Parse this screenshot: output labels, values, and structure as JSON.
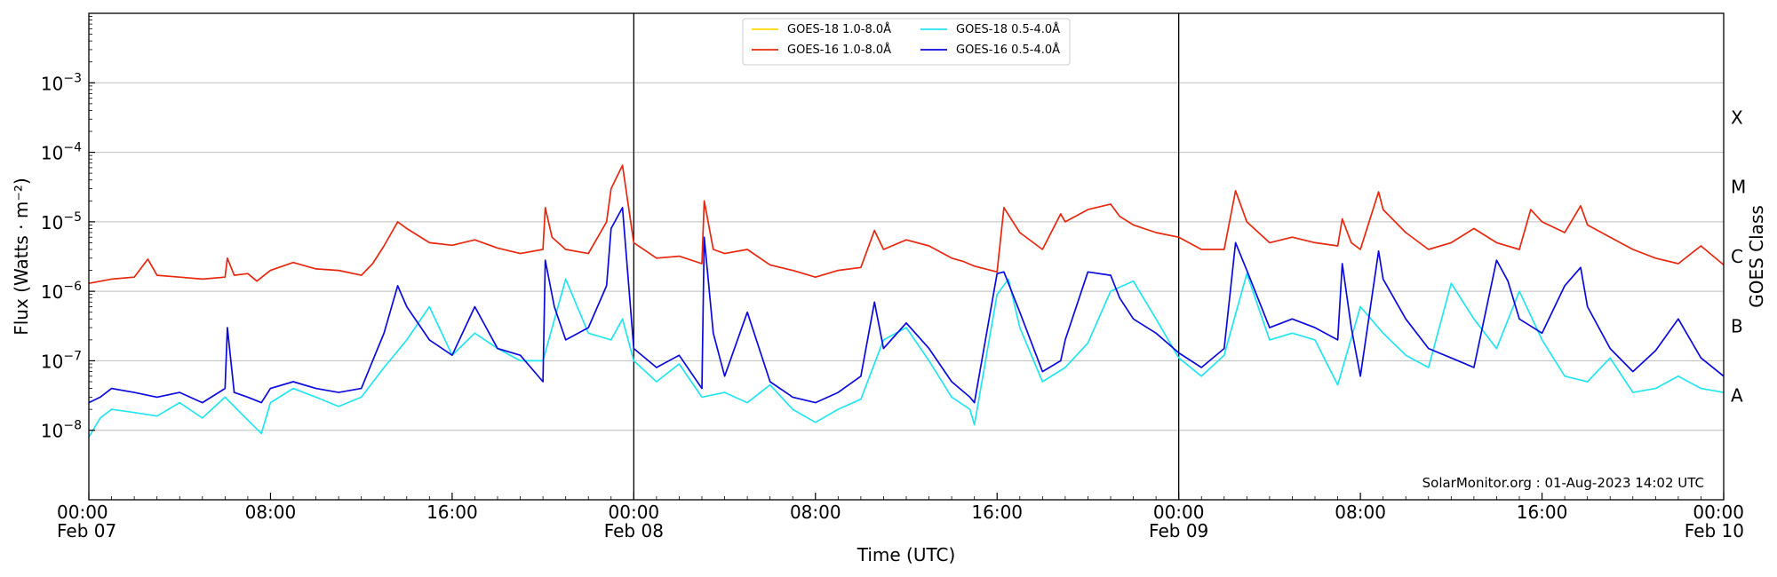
{
  "chart_data": {
    "type": "line",
    "title": "",
    "xlabel": "Time (UTC)",
    "ylabel": "Flux (Watts · m⁻²)",
    "y2label": "GOES Class",
    "yscale": "log",
    "ylim": [
      1e-09,
      0.01
    ],
    "xlim_hours": [
      0,
      72
    ],
    "x_ticks": [
      {
        "hour": 0,
        "time": "00:00",
        "date": "Feb 07"
      },
      {
        "hour": 8,
        "time": "08:00",
        "date": ""
      },
      {
        "hour": 16,
        "time": "16:00",
        "date": ""
      },
      {
        "hour": 24,
        "time": "00:00",
        "date": "Feb 08"
      },
      {
        "hour": 32,
        "time": "08:00",
        "date": ""
      },
      {
        "hour": 40,
        "time": "16:00",
        "date": ""
      },
      {
        "hour": 48,
        "time": "00:00",
        "date": "Feb 09"
      },
      {
        "hour": 56,
        "time": "08:00",
        "date": ""
      },
      {
        "hour": 64,
        "time": "16:00",
        "date": ""
      },
      {
        "hour": 72,
        "time": "00:00",
        "date": "Feb 10"
      }
    ],
    "y_ticks": [
      {
        "value": 1e-08,
        "mantissa": "10",
        "exponent": "−8"
      },
      {
        "value": 1e-07,
        "mantissa": "10",
        "exponent": "−7"
      },
      {
        "value": 1e-06,
        "mantissa": "10",
        "exponent": "−6"
      },
      {
        "value": 1e-05,
        "mantissa": "10",
        "exponent": "−5"
      },
      {
        "value": 0.0001,
        "mantissa": "10",
        "exponent": "−4"
      },
      {
        "value": 0.001,
        "mantissa": "10",
        "exponent": "−3"
      }
    ],
    "goes_classes": [
      {
        "label": "A",
        "value": 3.16e-08
      },
      {
        "label": "B",
        "value": 3.16e-07
      },
      {
        "label": "C",
        "value": 3.16e-06
      },
      {
        "label": "M",
        "value": 3.16e-05
      },
      {
        "label": "X",
        "value": 0.000316
      }
    ],
    "day_boundaries_hours": [
      24,
      48
    ],
    "grid": true,
    "legend_position": "top-center",
    "credit": "SolarMonitor.org : 01-Aug-2023 14:02 UTC",
    "series": [
      {
        "name": "GOES-18 1.0-8.0Å",
        "color": "#FFD700",
        "visible": false,
        "x": [],
        "y": []
      },
      {
        "name": "GOES-16 1.0-8.0Å",
        "color": "#E8270E",
        "x": [
          0,
          1,
          2,
          2.6,
          3,
          4,
          5,
          6,
          6.1,
          6.4,
          7,
          7.4,
          8,
          9,
          10,
          11,
          12,
          12.5,
          13,
          13.6,
          14,
          15,
          16,
          17,
          18,
          19,
          20,
          20.1,
          20.4,
          21,
          22,
          22.8,
          23,
          23.5,
          24,
          25,
          26,
          27,
          27.1,
          27.5,
          28,
          29,
          30,
          31,
          32,
          33,
          34,
          34.6,
          35,
          36,
          37,
          38,
          38.5,
          39,
          40,
          40.3,
          41,
          42,
          42.8,
          43,
          44,
          45,
          45.4,
          46,
          47,
          48,
          49,
          50,
          50.5,
          51,
          52,
          53,
          54,
          55,
          55.2,
          55.6,
          56,
          56.8,
          57,
          58,
          59,
          60,
          61,
          62,
          63,
          63.5,
          64,
          65,
          65.7,
          66,
          67,
          68,
          69,
          70,
          71,
          72
        ],
        "y": [
          1.3e-06,
          1.5e-06,
          1.6e-06,
          2.9e-06,
          1.7e-06,
          1.6e-06,
          1.5e-06,
          1.6e-06,
          3e-06,
          1.7e-06,
          1.8e-06,
          1.4e-06,
          2e-06,
          2.6e-06,
          2.1e-06,
          2e-06,
          1.7e-06,
          2.5e-06,
          4.5e-06,
          1e-05,
          8e-06,
          5e-06,
          4.6e-06,
          5.5e-06,
          4.2e-06,
          3.5e-06,
          4e-06,
          1.6e-05,
          6e-06,
          4e-06,
          3.5e-06,
          1e-05,
          3e-05,
          6.5e-05,
          5e-06,
          3e-06,
          3.2e-06,
          2.5e-06,
          2e-05,
          4e-06,
          3.5e-06,
          4e-06,
          2.4e-06,
          2e-06,
          1.6e-06,
          2e-06,
          2.2e-06,
          7.5e-06,
          4e-06,
          5.5e-06,
          4.5e-06,
          3e-06,
          2.7e-06,
          2.3e-06,
          1.9e-06,
          1.6e-05,
          7e-06,
          4e-06,
          1.3e-05,
          1e-05,
          1.5e-05,
          1.8e-05,
          1.2e-05,
          9e-06,
          7e-06,
          6e-06,
          4e-06,
          4e-06,
          2.8e-05,
          1e-05,
          5e-06,
          6e-06,
          5e-06,
          4.5e-06,
          1.1e-05,
          5e-06,
          4e-06,
          2.7e-05,
          1.5e-05,
          7e-06,
          4e-06,
          5e-06,
          8e-06,
          5e-06,
          4e-06,
          1.5e-05,
          1e-05,
          7e-06,
          1.7e-05,
          9e-06,
          6e-06,
          4e-06,
          3e-06,
          2.5e-06,
          4.5e-06,
          2.4e-06
        ]
      },
      {
        "name": "GOES-18 0.5-4.0Å",
        "color": "#22E5F0",
        "x": [
          0,
          0.5,
          1,
          2,
          3,
          4,
          5,
          6,
          7,
          7.6,
          8,
          9,
          10,
          11,
          12,
          13,
          14,
          15,
          16,
          17,
          18,
          19,
          20,
          21,
          22,
          23,
          23.5,
          24,
          25,
          26,
          27,
          28,
          29,
          30,
          31,
          32,
          33,
          34,
          35,
          36,
          37,
          38,
          38.8,
          39,
          40,
          40.5,
          41,
          42,
          43,
          44,
          45,
          46,
          47,
          48,
          49,
          50,
          51,
          52,
          53,
          54,
          55,
          56,
          57,
          58,
          59,
          60,
          61,
          62,
          63,
          64,
          65,
          66,
          67,
          68,
          69,
          70,
          71,
          72
        ],
        "y": [
          8e-09,
          1.5e-08,
          2e-08,
          1.8e-08,
          1.6e-08,
          2.5e-08,
          1.5e-08,
          3e-08,
          1.4e-08,
          9e-09,
          2.5e-08,
          4e-08,
          3e-08,
          2.2e-08,
          3e-08,
          8e-08,
          2e-07,
          6e-07,
          1.2e-07,
          2.5e-07,
          1.5e-07,
          1e-07,
          1e-07,
          1.5e-06,
          2.5e-07,
          2e-07,
          4e-07,
          1e-07,
          5e-08,
          9e-08,
          3e-08,
          3.5e-08,
          2.5e-08,
          4.5e-08,
          2e-08,
          1.3e-08,
          2e-08,
          2.8e-08,
          2e-07,
          3e-07,
          1e-07,
          3e-08,
          2e-08,
          1.2e-08,
          9e-07,
          1.5e-06,
          3e-07,
          5e-08,
          8e-08,
          1.8e-07,
          1e-06,
          1.4e-06,
          4e-07,
          1.1e-07,
          6e-08,
          1.2e-07,
          1.8e-06,
          2e-07,
          2.5e-07,
          2e-07,
          4.5e-08,
          6e-07,
          2.5e-07,
          1.2e-07,
          8e-08,
          1.3e-06,
          4e-07,
          1.5e-07,
          1e-06,
          2e-07,
          6e-08,
          5e-08,
          1.1e-07,
          3.5e-08,
          4e-08,
          6e-08,
          4e-08,
          3.5e-08
        ]
      },
      {
        "name": "GOES-16 0.5-4.0Å",
        "color": "#0A0ADF",
        "x": [
          0,
          0.5,
          1,
          2,
          3,
          4,
          5,
          6,
          6.1,
          6.4,
          7,
          7.6,
          8,
          9,
          10,
          11,
          12,
          12.5,
          13,
          13.6,
          14,
          15,
          16,
          17,
          18,
          19,
          20,
          20.1,
          20.5,
          21,
          22,
          22.8,
          23,
          23.5,
          24,
          25,
          26,
          27,
          27.1,
          27.5,
          28,
          29,
          30,
          31,
          32,
          33,
          34,
          34.6,
          35,
          36,
          37,
          38,
          38.8,
          39,
          40,
          40.3,
          41,
          42,
          42.8,
          43,
          44,
          45,
          45.4,
          46,
          47,
          48,
          49,
          50,
          50.5,
          51,
          52,
          53,
          54,
          55,
          55.2,
          55.6,
          56,
          56.8,
          57,
          58,
          59,
          60,
          61,
          62,
          62.5,
          63,
          64,
          65,
          65.7,
          66,
          67,
          68,
          69,
          70,
          71,
          72
        ],
        "y": [
          2.5e-08,
          3e-08,
          4e-08,
          3.5e-08,
          3e-08,
          3.5e-08,
          2.5e-08,
          4e-08,
          3e-07,
          3.5e-08,
          3e-08,
          2.5e-08,
          4e-08,
          5e-08,
          4e-08,
          3.5e-08,
          4e-08,
          1e-07,
          2.5e-07,
          1.2e-06,
          6e-07,
          2e-07,
          1.2e-07,
          6e-07,
          1.5e-07,
          1.2e-07,
          5e-08,
          2.8e-06,
          6e-07,
          2e-07,
          3e-07,
          1.2e-06,
          8e-06,
          1.6e-05,
          1.5e-07,
          8e-08,
          1.2e-07,
          4e-08,
          6e-06,
          2.5e-07,
          6e-08,
          5e-07,
          5e-08,
          3e-08,
          2.5e-08,
          3.5e-08,
          6e-08,
          7e-07,
          1.5e-07,
          3.5e-07,
          1.5e-07,
          5e-08,
          3e-08,
          2.5e-08,
          1.8e-06,
          1.9e-06,
          5e-07,
          7e-08,
          1e-07,
          2e-07,
          1.9e-06,
          1.7e-06,
          8e-07,
          4e-07,
          2.5e-07,
          1.3e-07,
          8e-08,
          1.5e-07,
          5e-06,
          2e-06,
          3e-07,
          4e-07,
          3e-07,
          2e-07,
          2.5e-06,
          3e-07,
          6e-08,
          3.8e-06,
          1.5e-06,
          4e-07,
          1.5e-07,
          1.1e-07,
          8e-08,
          2.8e-06,
          1.4e-06,
          4e-07,
          2.5e-07,
          1.2e-06,
          2.2e-06,
          6e-07,
          1.5e-07,
          7e-08,
          1.4e-07,
          4e-07,
          1.1e-07,
          6e-08
        ]
      }
    ]
  }
}
